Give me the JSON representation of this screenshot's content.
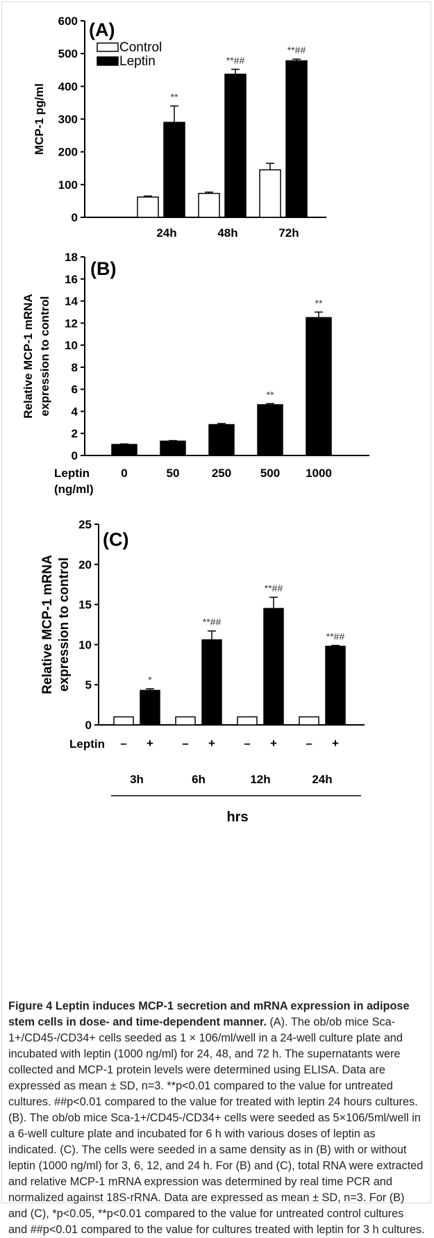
{
  "chart_data": [
    {
      "type": "bar",
      "panel": "(A)",
      "ylabel": "MCP-1 pg/ml",
      "ylim": [
        0,
        600
      ],
      "yticks": [
        0,
        100,
        200,
        300,
        400,
        500,
        600
      ],
      "categories": [
        "24h",
        "48h",
        "72h"
      ],
      "series": [
        {
          "name": "Control",
          "color": "#ffffff",
          "values": [
            62,
            73,
            145
          ],
          "errors": [
            3,
            4,
            20
          ],
          "annotations": [
            "",
            "",
            ""
          ]
        },
        {
          "name": "Leptin",
          "color": "#000000",
          "values": [
            290,
            437,
            478
          ],
          "errors": [
            50,
            15,
            5
          ],
          "annotations": [
            "**",
            "**##",
            "**##"
          ]
        }
      ],
      "legend_position": "top-left"
    },
    {
      "type": "bar",
      "panel": "(B)",
      "ylabel": "Relative MCP-1 mRNA expression to control",
      "ylim": [
        0,
        18
      ],
      "yticks": [
        0,
        2,
        4,
        6,
        8,
        10,
        12,
        14,
        16,
        18
      ],
      "x_prefix": [
        "Leptin",
        "(ng/ml)"
      ],
      "categories": [
        "0",
        "50",
        "250",
        "500",
        "1000"
      ],
      "series": [
        {
          "name": "",
          "color": "#000000",
          "values": [
            1.0,
            1.3,
            2.8,
            4.6,
            12.5
          ],
          "errors": [
            0.05,
            0.05,
            0.1,
            0.1,
            0.5
          ],
          "annotations": [
            "",
            "",
            "",
            "**",
            "**"
          ]
        }
      ]
    },
    {
      "type": "bar",
      "panel": "(C)",
      "ylabel": "Relative MCP-1 mRNA expression to control",
      "ylim": [
        0,
        25
      ],
      "yticks": [
        0,
        5,
        10,
        15,
        20,
        25
      ],
      "leptin_label": "Leptin",
      "leptin_signs": [
        "–",
        "+"
      ],
      "categories": [
        "3h",
        "6h",
        "12h",
        "24h"
      ],
      "xlabel": "hrs",
      "series": [
        {
          "name": "–",
          "color": "#ffffff",
          "values": [
            1,
            1,
            1,
            1
          ],
          "errors": [
            0,
            0,
            0,
            0
          ],
          "annotations": [
            "",
            "",
            "",
            ""
          ]
        },
        {
          "name": "+",
          "color": "#000000",
          "values": [
            4.3,
            10.6,
            14.5,
            9.8
          ],
          "errors": [
            0.2,
            1.1,
            1.4,
            0.1
          ],
          "annotations": [
            "*",
            "**##",
            "**##",
            "**##"
          ]
        }
      ]
    }
  ],
  "caption": {
    "figure_label": "Figure 4",
    "title": "Leptin induces MCP-1 secretion and mRNA expression in adipose stem cells in dose- and time-dependent manner.",
    "text": "(A). The ob/ob mice Sca-1+/CD45-/CD34+ cells seeded as 1 × 106/ml/well in a 24-well culture plate and incubated with leptin (1000 ng/ml) for 24, 48, and 72 h. The supernatants were collected and MCP-1 protein levels were determined using ELISA. Data are expressed as mean ± SD, n=3. **p<0.01 compared to the value for untreated cultures. ##p<0.01 compared to the value for treated with leptin 24 hours cultures. (B). The ob/ob mice Sca-1+/CD45-/CD34+ cells were seeded as 5×106/5ml/well in a 6-well culture plate and incubated for 6 h with various doses of leptin as indicated. (C). The cells were seeded in a same density as in (B) with or without leptin (1000 ng/ml) for 3, 6, 12, and 24 h. For (B) and (C), total RNA were extracted and relative MCP-1 mRNA expression was determined by real time PCR and normalized against 18S-rRNA. Data are expressed as mean ± SD, n=3. For (B) and (C), *p<0.05, **p<0.01 compared to the value for untreated control cultures and ##p<0.01 compared to the value for cultures treated with leptin for 3 h cultures."
  }
}
